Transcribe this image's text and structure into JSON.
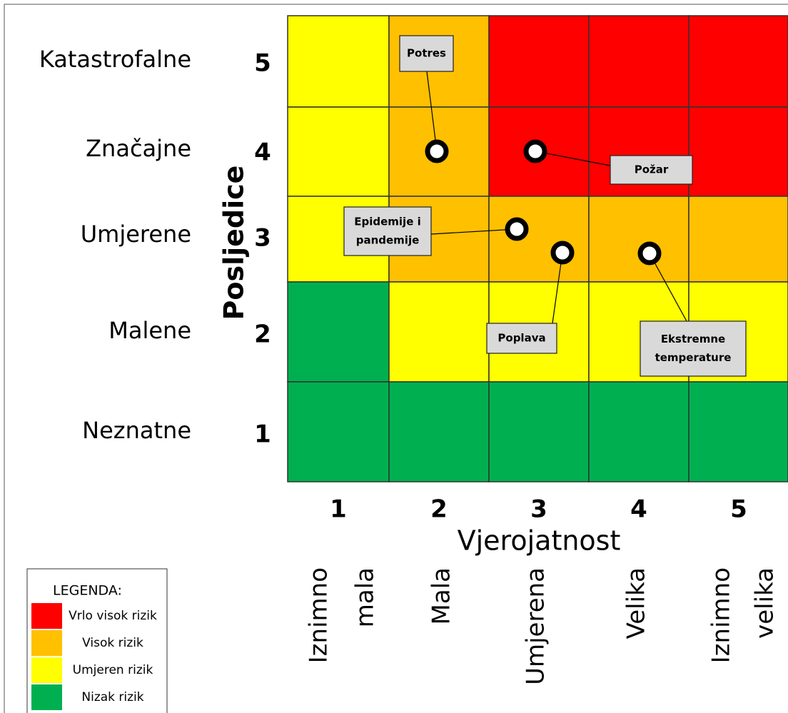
{
  "y_axis": {
    "title": "Posljedice",
    "levels": [
      {
        "name": "Katastrofalne",
        "number": "5"
      },
      {
        "name": "Značajne",
        "number": "4"
      },
      {
        "name": "Umjerene",
        "number": "3"
      },
      {
        "name": "Malene",
        "number": "2"
      },
      {
        "name": "Neznatne",
        "number": "1"
      }
    ]
  },
  "x_axis": {
    "title": "Vjerojatnost",
    "levels": [
      {
        "number": "1",
        "lines": [
          "Iznimno",
          "mala"
        ]
      },
      {
        "number": "2",
        "lines": [
          "Mala"
        ]
      },
      {
        "number": "3",
        "lines": [
          "Umjerena"
        ]
      },
      {
        "number": "4",
        "lines": [
          "Velika"
        ]
      },
      {
        "number": "5",
        "lines": [
          "Iznimno",
          "velika"
        ]
      }
    ]
  },
  "matrix": [
    [
      "#ffff00",
      "#ffc000",
      "#ff0000",
      "#ff0000",
      "#ff0000"
    ],
    [
      "#ffff00",
      "#ffc000",
      "#ff0000",
      "#ff0000",
      "#ff0000"
    ],
    [
      "#ffff00",
      "#ffc000",
      "#ffc000",
      "#ffc000",
      "#ffc000"
    ],
    [
      "#00b050",
      "#ffff00",
      "#ffff00",
      "#ffff00",
      "#ffff00"
    ],
    [
      "#00b050",
      "#00b050",
      "#00b050",
      "#00b050",
      "#00b050"
    ]
  ],
  "risks": [
    {
      "lines": [
        "Potres"
      ]
    },
    {
      "lines": [
        "Požar"
      ]
    },
    {
      "lines": [
        "Epidemije i",
        "pandemije"
      ]
    },
    {
      "lines": [
        "Poplava"
      ]
    },
    {
      "lines": [
        "Ekstremne",
        "temperature"
      ]
    }
  ],
  "legend": {
    "title": "LEGENDA:",
    "items": [
      {
        "label": "Vrlo visok rizik",
        "color": "#ff0000"
      },
      {
        "label": "Visok rizik",
        "color": "#ffc000"
      },
      {
        "label": "Umjeren rizik",
        "color": "#ffff00"
      },
      {
        "label": "Nizak rizik",
        "color": "#00b050"
      }
    ]
  }
}
